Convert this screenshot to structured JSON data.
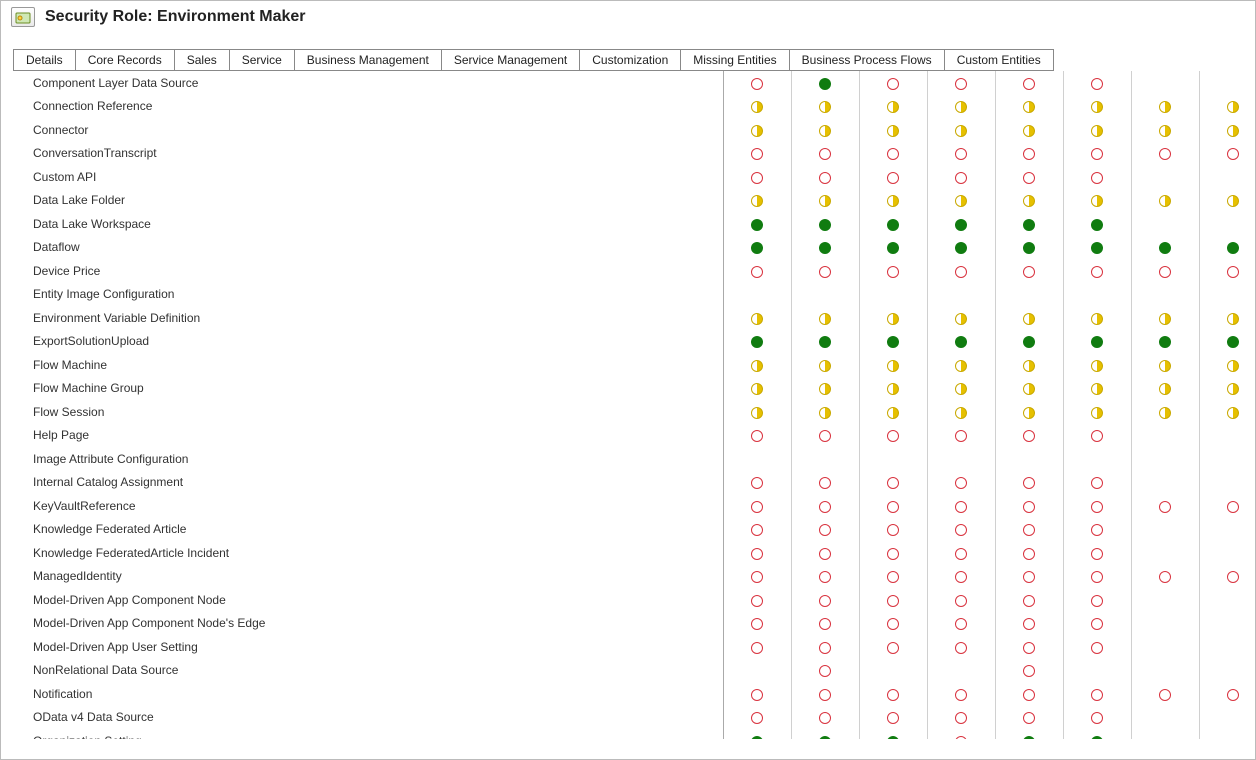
{
  "header": {
    "title": "Security Role: Environment Maker"
  },
  "tabs": [
    "Details",
    "Core Records",
    "Sales",
    "Service",
    "Business Management",
    "Service Management",
    "Customization",
    "Missing Entities",
    "Business Process Flows",
    "Custom Entities"
  ],
  "permission_legend": {
    "none": {
      "color_border": "#d9333f",
      "fill": "#ffffff"
    },
    "half": {
      "color_border": "#c9a900",
      "fill": "#e6c000"
    },
    "full": {
      "color_border": "#107c10",
      "fill": "#107c10"
    },
    "blank": {}
  },
  "columns": 8,
  "entities": [
    {
      "name": "Component Layer Data Source",
      "perms": [
        "none",
        "full",
        "none",
        "none",
        "none",
        "none",
        "blank",
        "blank"
      ]
    },
    {
      "name": "Connection Reference",
      "perms": [
        "half",
        "half",
        "half",
        "half",
        "half",
        "half",
        "half",
        "half"
      ]
    },
    {
      "name": "Connector",
      "perms": [
        "half",
        "half",
        "half",
        "half",
        "half",
        "half",
        "half",
        "half"
      ]
    },
    {
      "name": "ConversationTranscript",
      "perms": [
        "none",
        "none",
        "none",
        "none",
        "none",
        "none",
        "none",
        "none"
      ]
    },
    {
      "name": "Custom API",
      "perms": [
        "none",
        "none",
        "none",
        "none",
        "none",
        "none",
        "blank",
        "blank"
      ]
    },
    {
      "name": "Data Lake Folder",
      "perms": [
        "half",
        "half",
        "half",
        "half",
        "half",
        "half",
        "half",
        "half"
      ]
    },
    {
      "name": "Data Lake Workspace",
      "perms": [
        "full",
        "full",
        "full",
        "full",
        "full",
        "full",
        "blank",
        "blank"
      ]
    },
    {
      "name": "Dataflow",
      "perms": [
        "full",
        "full",
        "full",
        "full",
        "full",
        "full",
        "full",
        "full"
      ]
    },
    {
      "name": "Device Price",
      "perms": [
        "none",
        "none",
        "none",
        "none",
        "none",
        "none",
        "none",
        "none"
      ]
    },
    {
      "name": "Entity Image Configuration",
      "perms": [
        "blank",
        "blank",
        "blank",
        "blank",
        "blank",
        "blank",
        "blank",
        "blank"
      ]
    },
    {
      "name": "Environment Variable Definition",
      "perms": [
        "half",
        "half",
        "half",
        "half",
        "half",
        "half",
        "half",
        "half"
      ]
    },
    {
      "name": "ExportSolutionUpload",
      "perms": [
        "full",
        "full",
        "full",
        "full",
        "full",
        "full",
        "full",
        "full"
      ]
    },
    {
      "name": "Flow Machine",
      "perms": [
        "half",
        "half",
        "half",
        "half",
        "half",
        "half",
        "half",
        "half"
      ]
    },
    {
      "name": "Flow Machine Group",
      "perms": [
        "half",
        "half",
        "half",
        "half",
        "half",
        "half",
        "half",
        "half"
      ]
    },
    {
      "name": "Flow Session",
      "perms": [
        "half",
        "half",
        "half",
        "half",
        "half",
        "half",
        "half",
        "half"
      ]
    },
    {
      "name": "Help Page",
      "perms": [
        "none",
        "none",
        "none",
        "none",
        "none",
        "none",
        "blank",
        "blank"
      ]
    },
    {
      "name": "Image Attribute Configuration",
      "perms": [
        "blank",
        "blank",
        "blank",
        "blank",
        "blank",
        "blank",
        "blank",
        "blank"
      ]
    },
    {
      "name": "Internal Catalog Assignment",
      "perms": [
        "none",
        "none",
        "none",
        "none",
        "none",
        "none",
        "blank",
        "blank"
      ]
    },
    {
      "name": "KeyVaultReference",
      "perms": [
        "none",
        "none",
        "none",
        "none",
        "none",
        "none",
        "none",
        "none"
      ]
    },
    {
      "name": "Knowledge Federated Article",
      "perms": [
        "none",
        "none",
        "none",
        "none",
        "none",
        "none",
        "blank",
        "blank"
      ]
    },
    {
      "name": "Knowledge FederatedArticle Incident",
      "perms": [
        "none",
        "none",
        "none",
        "none",
        "none",
        "none",
        "blank",
        "blank"
      ]
    },
    {
      "name": "ManagedIdentity",
      "perms": [
        "none",
        "none",
        "none",
        "none",
        "none",
        "none",
        "none",
        "none"
      ]
    },
    {
      "name": "Model-Driven App Component Node",
      "perms": [
        "none",
        "none",
        "none",
        "none",
        "none",
        "none",
        "blank",
        "blank"
      ]
    },
    {
      "name": "Model-Driven App Component Node's Edge",
      "perms": [
        "none",
        "none",
        "none",
        "none",
        "none",
        "none",
        "blank",
        "blank"
      ]
    },
    {
      "name": "Model-Driven App User Setting",
      "perms": [
        "none",
        "none",
        "none",
        "none",
        "none",
        "none",
        "blank",
        "blank"
      ]
    },
    {
      "name": "NonRelational Data Source",
      "perms": [
        "blank",
        "none",
        "blank",
        "blank",
        "none",
        "blank",
        "blank",
        "blank"
      ]
    },
    {
      "name": "Notification",
      "perms": [
        "none",
        "none",
        "none",
        "none",
        "none",
        "none",
        "none",
        "none"
      ]
    },
    {
      "name": "OData v4 Data Source",
      "perms": [
        "none",
        "none",
        "none",
        "none",
        "none",
        "none",
        "blank",
        "blank"
      ]
    },
    {
      "name": "Organization Setting",
      "perms": [
        "full",
        "full",
        "full",
        "none",
        "full",
        "full",
        "blank",
        "blank"
      ]
    }
  ]
}
